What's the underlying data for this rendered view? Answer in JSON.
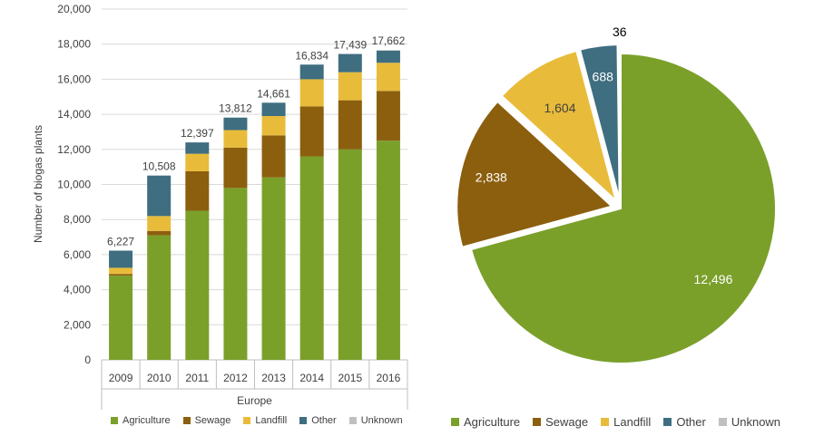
{
  "colors": {
    "agriculture": "#7aa02a",
    "sewage": "#8c5f0e",
    "landfill": "#e8bc3a",
    "other": "#3f6e80",
    "unknown": "#c0c0c0",
    "axis": "#bfbfbf",
    "grid": "#d9d9d9",
    "text": "#404040"
  },
  "chart_data": [
    {
      "type": "bar",
      "stacked": true,
      "title": "",
      "xlabel": "Europe",
      "ylabel": "Number of biogas plants",
      "ylim": [
        0,
        20000
      ],
      "yticks": [
        "0",
        "2,000",
        "4,000",
        "6,000",
        "8,000",
        "10,000",
        "12,000",
        "14,000",
        "16,000",
        "18,000",
        "20,000"
      ],
      "ytick_values": [
        0,
        2000,
        4000,
        6000,
        8000,
        10000,
        12000,
        14000,
        16000,
        18000,
        20000
      ],
      "categories": [
        "2009",
        "2010",
        "2011",
        "2012",
        "2013",
        "2014",
        "2015",
        "2016"
      ],
      "series": [
        {
          "name": "Agriculture",
          "key": "agriculture",
          "values": [
            4800,
            7100,
            8500,
            9800,
            10400,
            11600,
            12000,
            12496
          ]
        },
        {
          "name": "Sewage",
          "key": "sewage",
          "values": [
            100,
            250,
            2250,
            2300,
            2400,
            2850,
            2800,
            2838
          ]
        },
        {
          "name": "Landfill",
          "key": "landfill",
          "values": [
            350,
            850,
            1000,
            1000,
            1100,
            1550,
            1600,
            1604
          ]
        },
        {
          "name": "Other",
          "key": "other",
          "values": [
            977,
            2308,
            647,
            712,
            761,
            834,
            1039,
            688
          ]
        },
        {
          "name": "Unknown",
          "key": "unknown",
          "values": [
            0,
            0,
            0,
            0,
            0,
            0,
            0,
            36
          ]
        }
      ],
      "totals": [
        "6,227",
        "10,508",
        "12,397",
        "13,812",
        "14,661",
        "16,834",
        "17,439",
        "17,662"
      ],
      "totals_values": [
        6227,
        10508,
        12397,
        13812,
        14661,
        16834,
        17439,
        17662
      ],
      "legend_position": "bottom",
      "grid": true
    },
    {
      "type": "pie",
      "exploded": true,
      "labels": [
        "Agriculture",
        "Sewage",
        "Landfill",
        "Other",
        "Unknown"
      ],
      "keys": [
        "agriculture",
        "sewage",
        "landfill",
        "other",
        "unknown"
      ],
      "values": [
        12496,
        2838,
        1604,
        688,
        36
      ],
      "data_labels": [
        "12,496",
        "2,838",
        "1,604",
        "688",
        "36"
      ],
      "legend_position": "bottom"
    }
  ],
  "bar_legend": [
    {
      "label": "Agriculture",
      "key": "agriculture"
    },
    {
      "label": "Sewage",
      "key": "sewage"
    },
    {
      "label": "Landfill",
      "key": "landfill"
    },
    {
      "label": "Other",
      "key": "other"
    },
    {
      "label": "Unknown",
      "key": "unknown"
    }
  ],
  "pie_legend": [
    {
      "label": "Agriculture",
      "key": "agriculture"
    },
    {
      "label": "Sewage",
      "key": "sewage"
    },
    {
      "label": "Landfill",
      "key": "landfill"
    },
    {
      "label": "Other",
      "key": "other"
    },
    {
      "label": "Unknown",
      "key": "unknown"
    }
  ]
}
